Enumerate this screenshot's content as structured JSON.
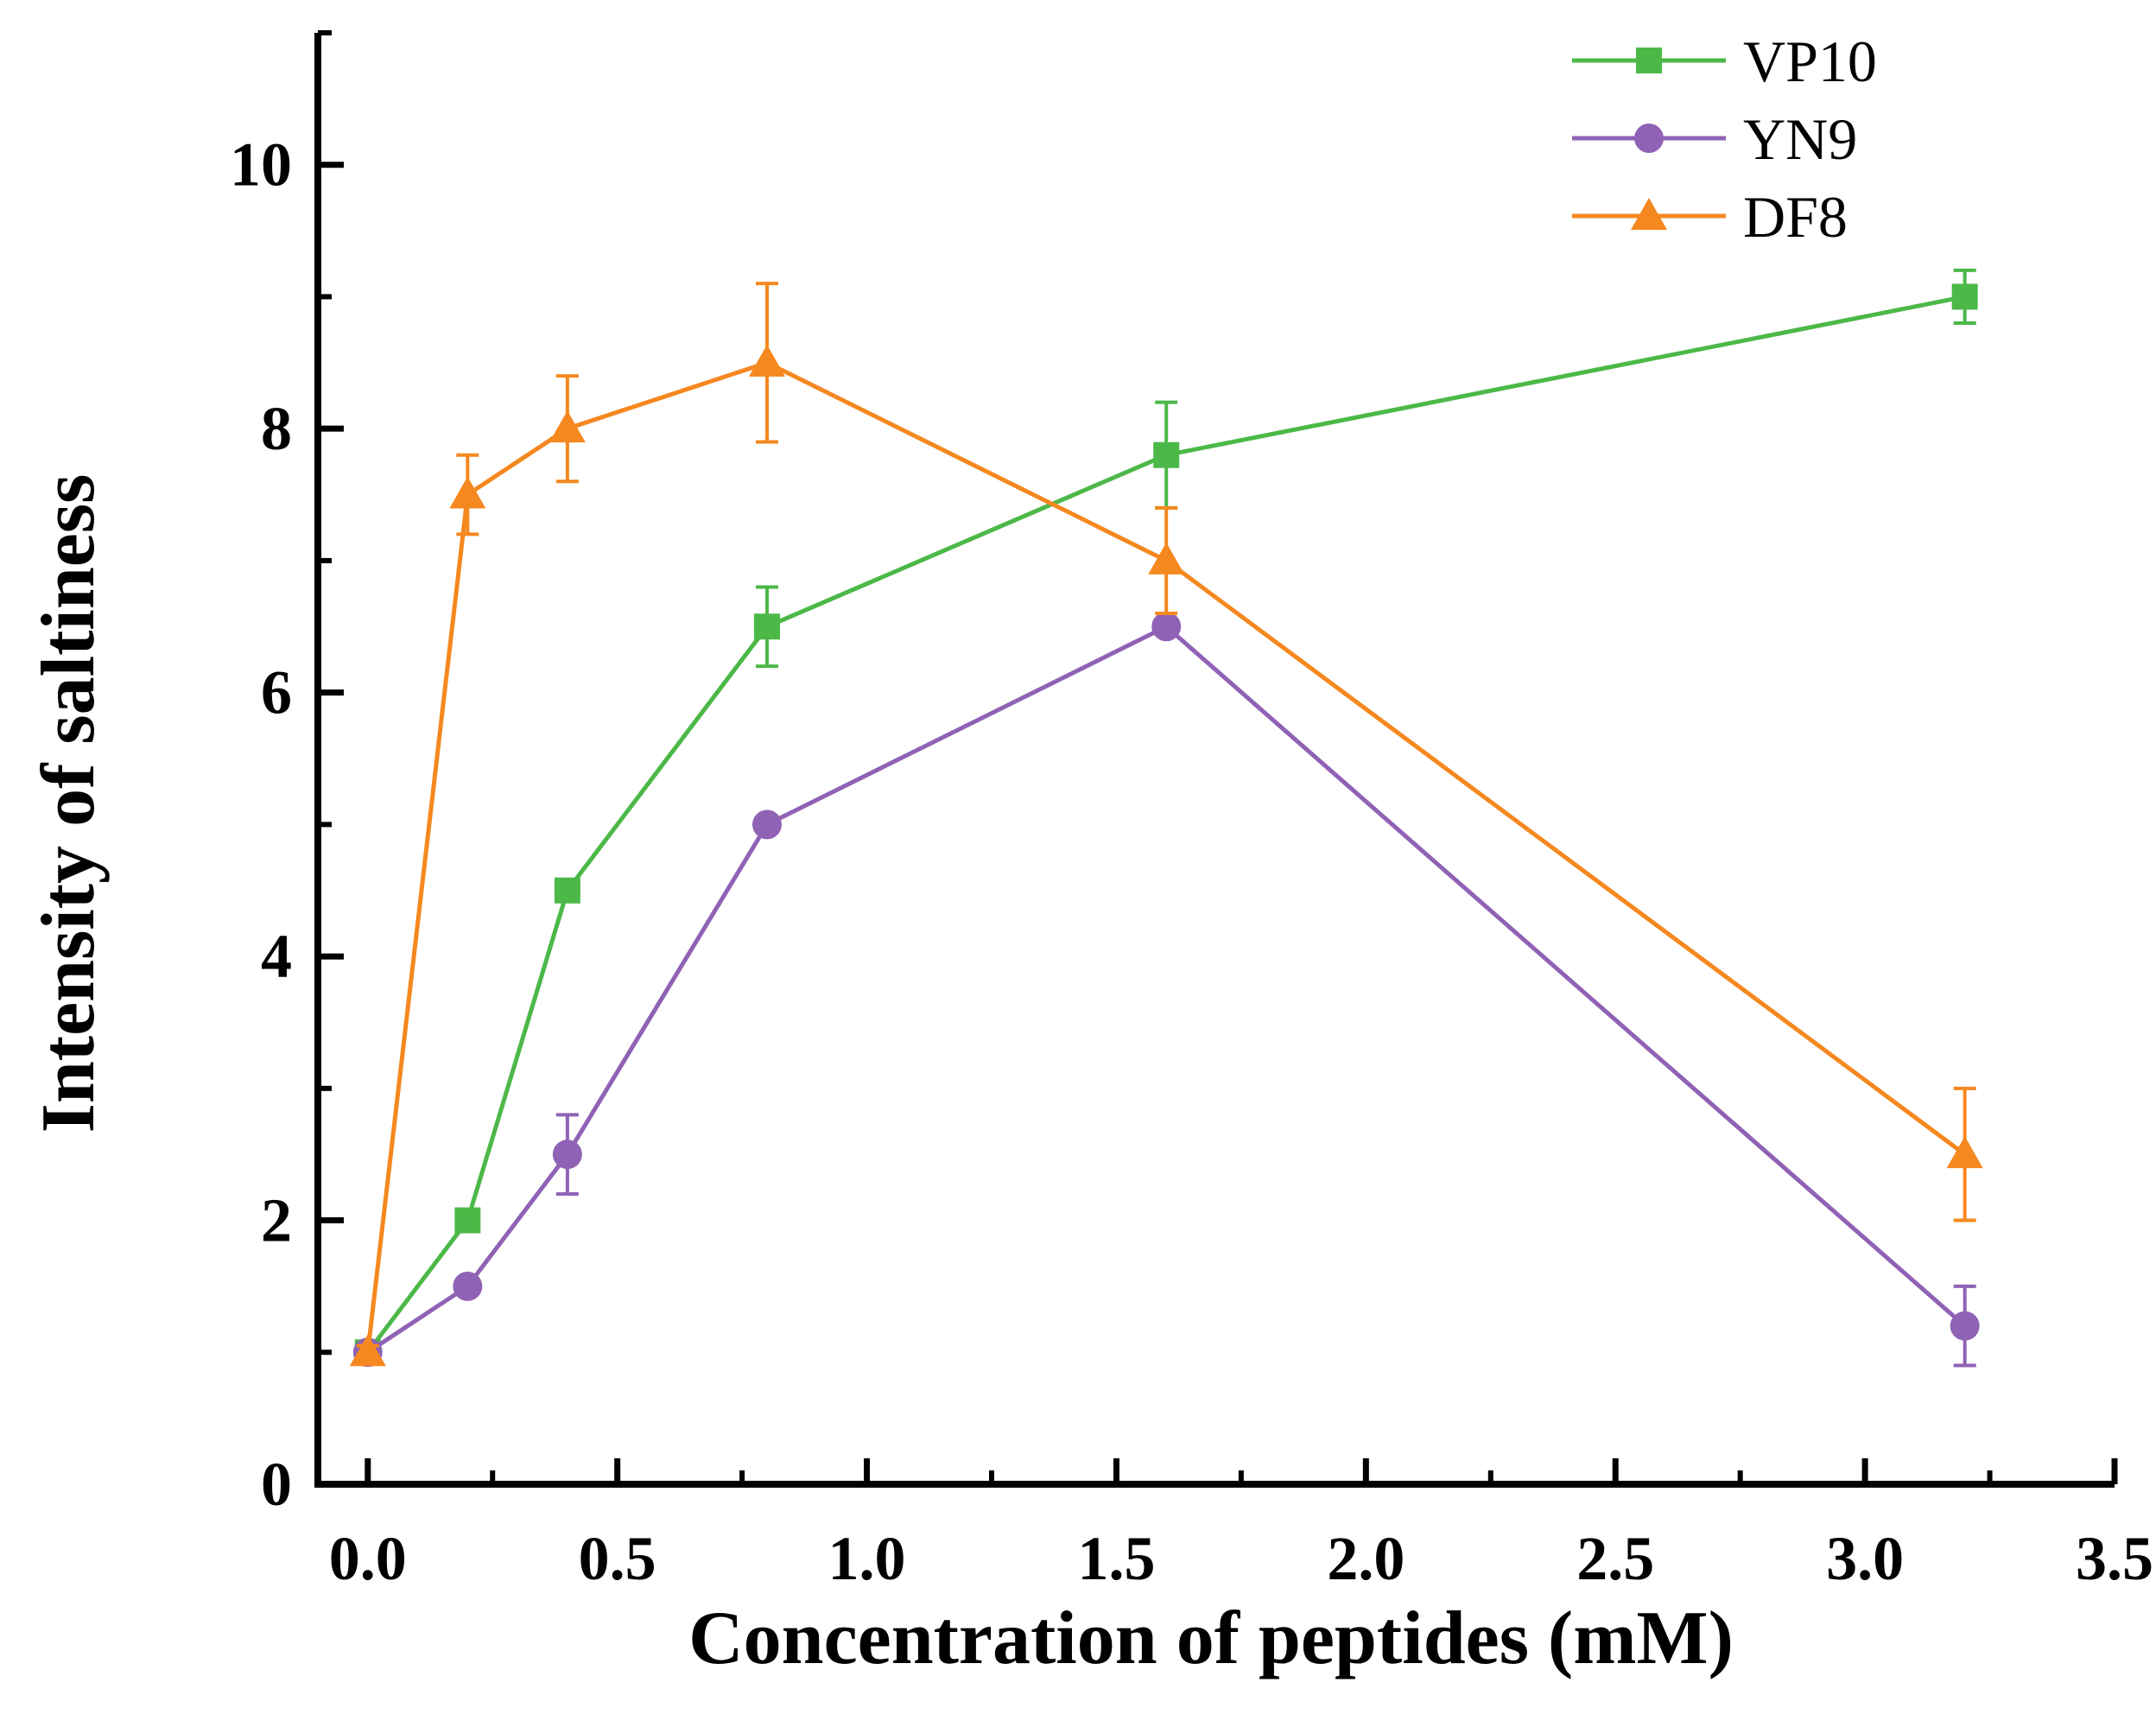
{
  "chart_data": {
    "type": "line",
    "title": "",
    "xlabel": "Concentration of peptides (mM)",
    "ylabel": "Intensity of saltiness",
    "xlim": [
      -0.1,
      3.5
    ],
    "ylim": [
      0,
      11
    ],
    "x_ticks": [
      0.0,
      0.5,
      1.0,
      1.5,
      2.0,
      2.5,
      3.0,
      3.5
    ],
    "x_tick_labels": [
      "0.0",
      "0.5",
      "1.0",
      "1.5",
      "2.0",
      "2.5",
      "3.0",
      "3.5"
    ],
    "y_ticks": [
      0,
      2,
      4,
      6,
      8,
      10
    ],
    "y_tick_labels": [
      "0",
      "2",
      "4",
      "6",
      "8",
      "10"
    ],
    "grid": false,
    "legend": "top-right",
    "series": [
      {
        "name": "VP10",
        "color": "#4cb848",
        "marker": "square",
        "x": [
          0,
          0.2,
          0.4,
          0.8,
          1.6,
          3.2
        ],
        "y": [
          1.0,
          2.0,
          4.5,
          6.5,
          7.8,
          9.0
        ],
        "error": [
          0.05,
          0.05,
          0.05,
          0.3,
          0.4,
          0.2
        ]
      },
      {
        "name": "YN9",
        "color": "#8f62b5",
        "marker": "circle",
        "x": [
          0,
          0.2,
          0.4,
          0.8,
          1.6,
          3.2
        ],
        "y": [
          1.0,
          1.5,
          2.5,
          5.0,
          6.5,
          1.2
        ],
        "error": [
          0.05,
          0.05,
          0.3,
          0.05,
          0.05,
          0.3
        ]
      },
      {
        "name": "DF8",
        "color": "#f5881f",
        "marker": "triangle",
        "x": [
          0,
          0.2,
          0.4,
          0.8,
          1.6,
          3.2
        ],
        "y": [
          1.0,
          7.5,
          8.0,
          8.5,
          7.0,
          2.5
        ],
        "error": [
          0.05,
          0.3,
          0.4,
          0.6,
          0.4,
          0.5
        ]
      }
    ]
  }
}
